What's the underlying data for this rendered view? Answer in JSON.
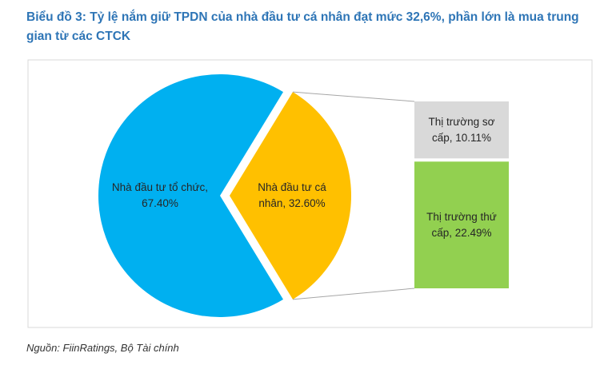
{
  "chart_data": {
    "type": "pie-of-bar",
    "title": "Biểu đồ 3: Tỷ lệ nắm giữ TPDN của nhà đầu tư cá nhân đạt mức 32,6%, phần lớn là mua trung gian từ các CTCK",
    "pie": {
      "values": [
        67.4,
        32.6
      ],
      "value_labels": [
        "Nhà đầu tư tổ chức, 67.40%",
        "Nhà đầu tư cá nhân, 32.60%"
      ],
      "colors": [
        "#00B0F0",
        "#FFC000"
      ]
    },
    "bar": {
      "values": [
        10.11,
        22.49
      ],
      "value_labels": [
        "Thị trường sơ cấp, 10.11%",
        "Thị trường thứ cấp, 22.49%"
      ],
      "colors": [
        "#D9D9D9",
        "#92D050"
      ]
    },
    "source": "Nguồn: FiinRatings, Bộ Tài chính"
  }
}
